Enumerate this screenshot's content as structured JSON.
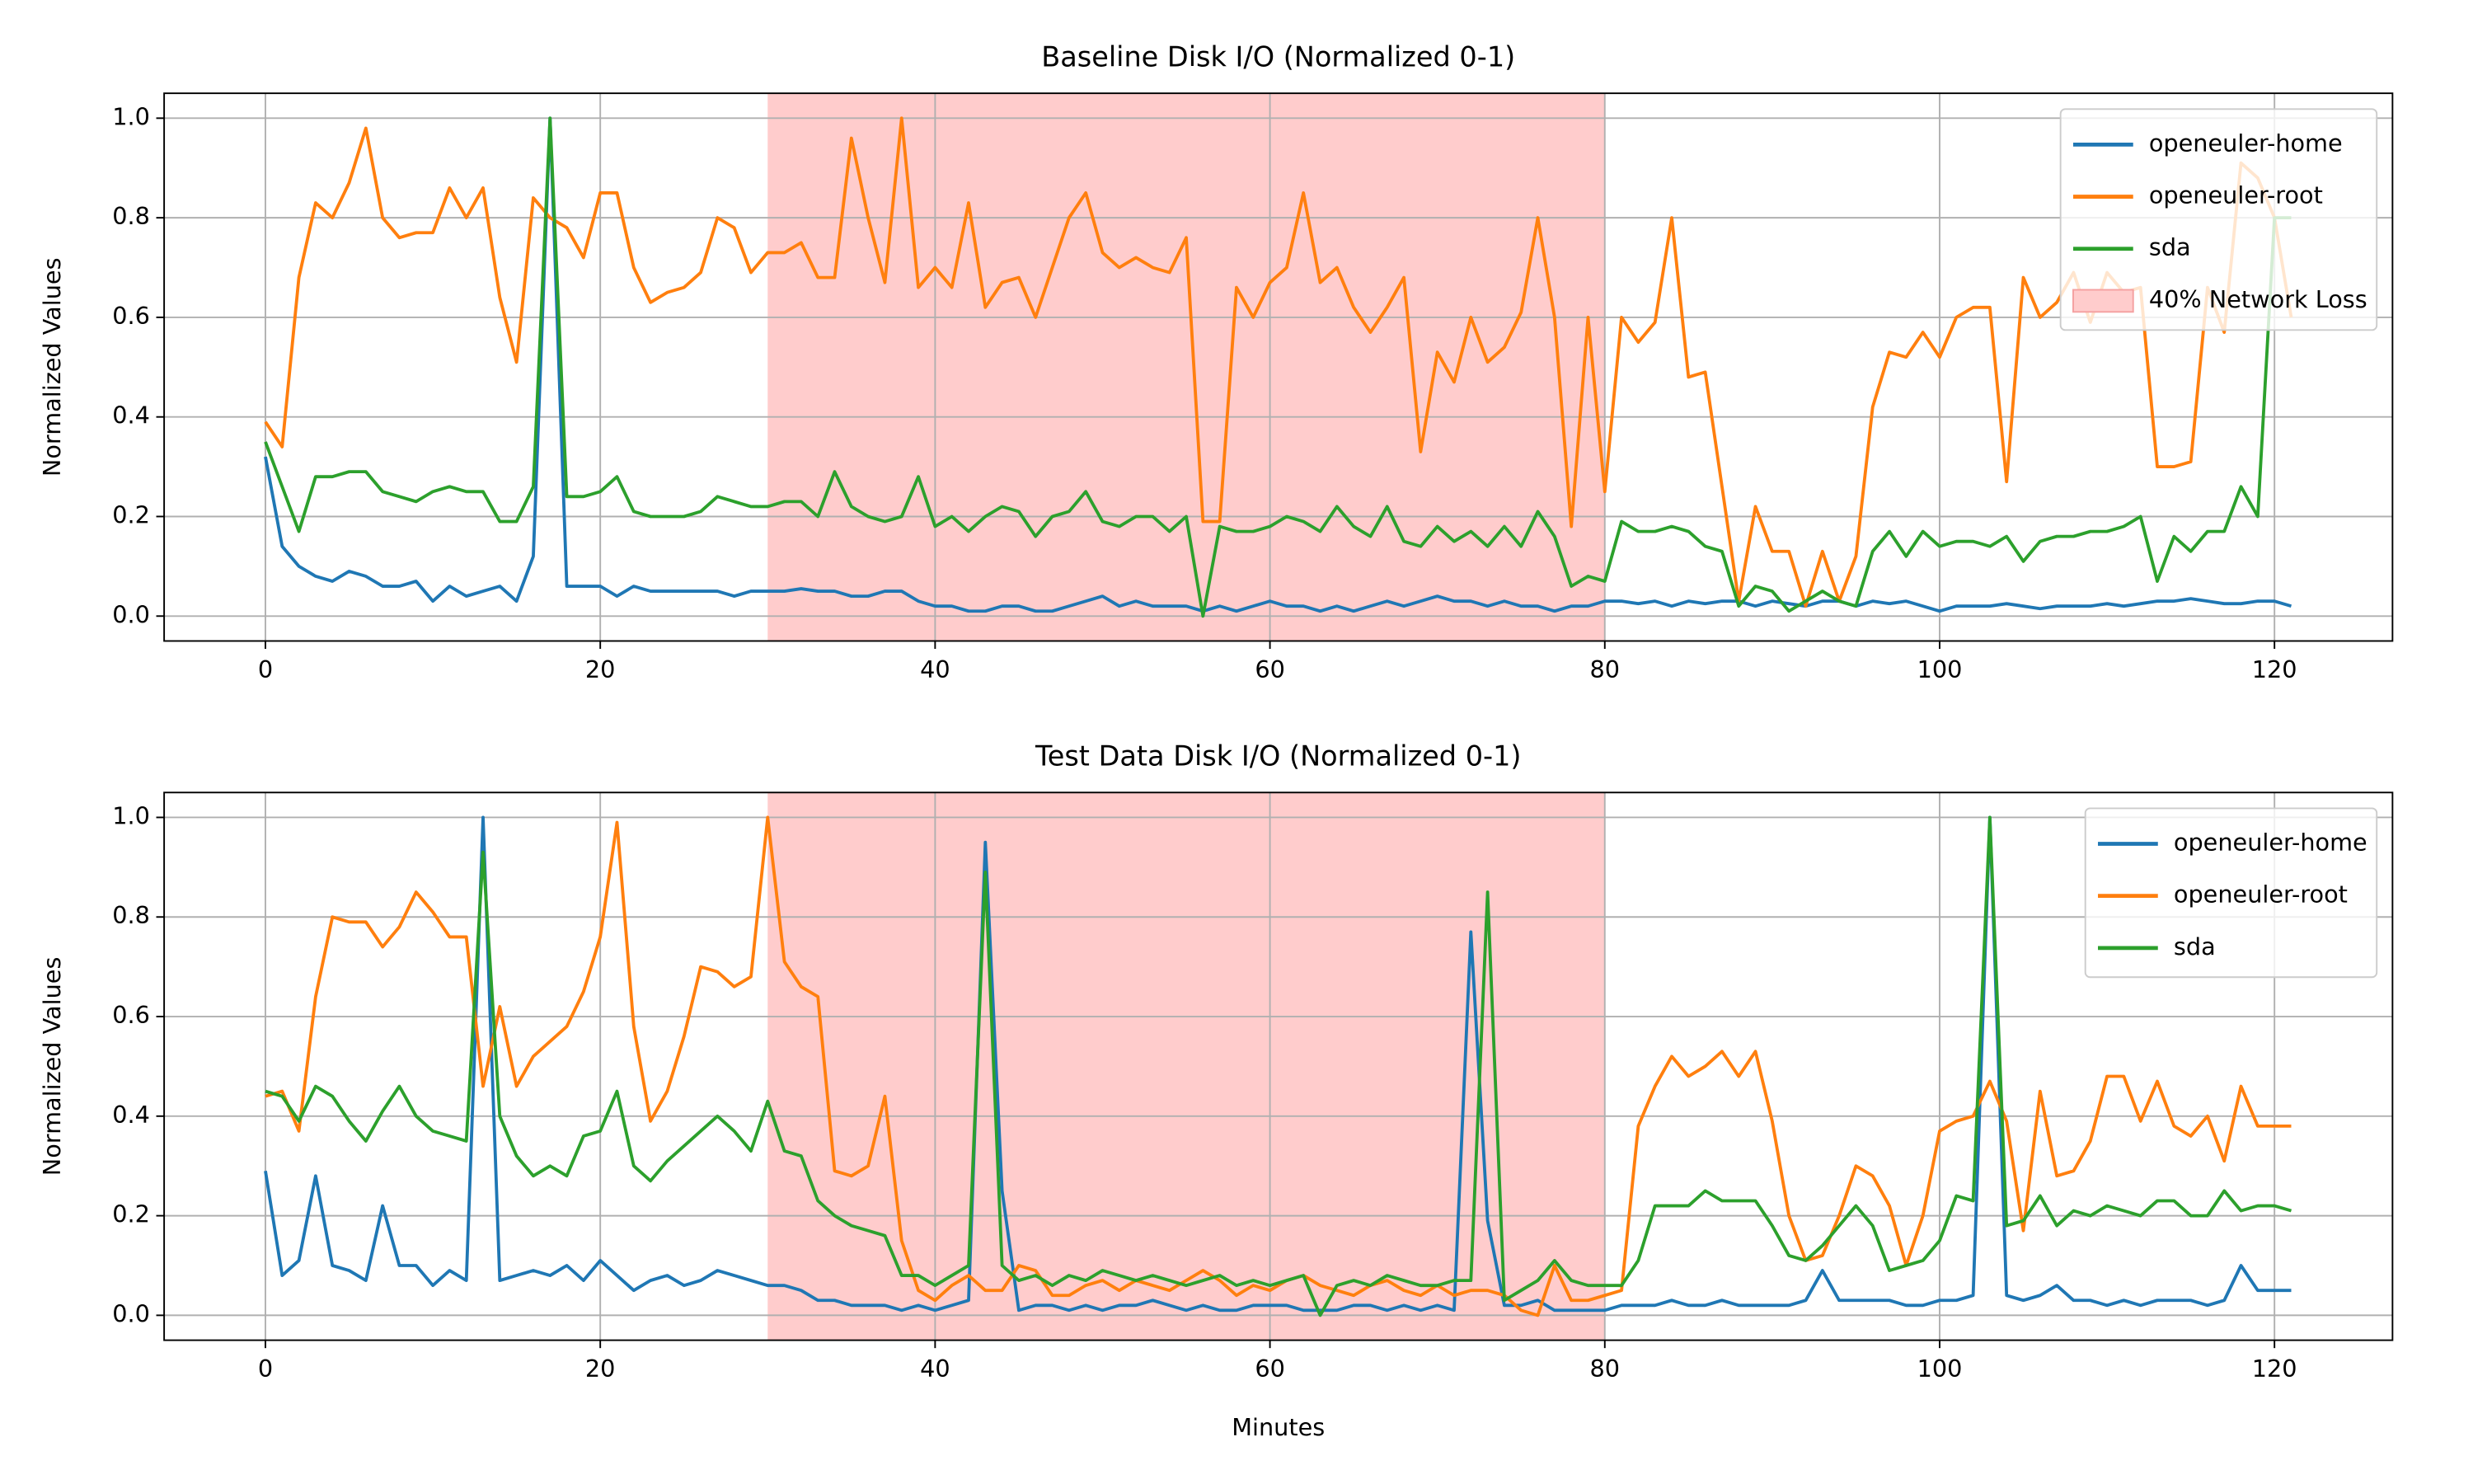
{
  "chart_data": [
    {
      "type": "line",
      "title": "Baseline Disk I/O (Normalized 0-1)",
      "ylabel": "Normalized Values",
      "x": [
        0,
        1,
        2,
        3,
        4,
        5,
        6,
        7,
        8,
        9,
        10,
        11,
        12,
        13,
        14,
        15,
        16,
        17,
        18,
        19,
        20,
        21,
        22,
        23,
        24,
        25,
        26,
        27,
        28,
        29,
        30,
        31,
        32,
        33,
        34,
        35,
        36,
        37,
        38,
        39,
        40,
        41,
        42,
        43,
        44,
        45,
        46,
        47,
        48,
        49,
        50,
        51,
        52,
        53,
        54,
        55,
        56,
        57,
        58,
        59,
        60,
        61,
        62,
        63,
        64,
        65,
        66,
        67,
        68,
        69,
        70,
        71,
        72,
        73,
        74,
        75,
        76,
        77,
        78,
        79,
        80,
        81,
        82,
        83,
        84,
        85,
        86,
        87,
        88,
        89,
        90,
        91,
        92,
        93,
        94,
        95,
        96,
        97,
        98,
        99,
        100,
        101,
        102,
        103,
        104,
        105,
        106,
        107,
        108,
        109,
        110,
        111,
        112,
        113,
        114,
        115,
        116,
        117,
        118,
        119,
        120,
        121
      ],
      "series": [
        {
          "name": "openeuler-home",
          "color": "#1f77b4",
          "values": [
            0.32,
            0.14,
            0.1,
            0.08,
            0.07,
            0.09,
            0.08,
            0.06,
            0.06,
            0.07,
            0.03,
            0.06,
            0.04,
            0.05,
            0.06,
            0.03,
            0.12,
            1.0,
            0.06,
            0.06,
            0.06,
            0.04,
            0.06,
            0.05,
            0.05,
            0.05,
            0.05,
            0.05,
            0.04,
            0.05,
            0.05,
            0.05,
            0.055,
            0.05,
            0.05,
            0.04,
            0.04,
            0.05,
            0.05,
            0.03,
            0.02,
            0.02,
            0.01,
            0.01,
            0.02,
            0.02,
            0.01,
            0.01,
            0.02,
            0.03,
            0.04,
            0.02,
            0.03,
            0.02,
            0.02,
            0.02,
            0.01,
            0.02,
            0.01,
            0.02,
            0.03,
            0.02,
            0.02,
            0.01,
            0.02,
            0.01,
            0.02,
            0.03,
            0.02,
            0.03,
            0.04,
            0.03,
            0.03,
            0.02,
            0.03,
            0.02,
            0.02,
            0.01,
            0.02,
            0.02,
            0.03,
            0.03,
            0.025,
            0.03,
            0.02,
            0.03,
            0.025,
            0.03,
            0.03,
            0.02,
            0.03,
            0.025,
            0.02,
            0.03,
            0.03,
            0.02,
            0.03,
            0.025,
            0.03,
            0.02,
            0.01,
            0.02,
            0.02,
            0.02,
            0.025,
            0.02,
            0.015,
            0.02,
            0.02,
            0.02,
            0.025,
            0.02,
            0.025,
            0.03,
            0.03,
            0.035,
            0.03,
            0.025,
            0.025,
            0.03,
            0.03,
            0.02
          ]
        },
        {
          "name": "openeuler-root",
          "color": "#ff7f0e",
          "values": [
            0.39,
            0.34,
            0.68,
            0.83,
            0.8,
            0.87,
            0.98,
            0.8,
            0.76,
            0.77,
            0.77,
            0.86,
            0.8,
            0.86,
            0.64,
            0.51,
            0.84,
            0.8,
            0.78,
            0.72,
            0.85,
            0.85,
            0.7,
            0.63,
            0.65,
            0.66,
            0.69,
            0.8,
            0.78,
            0.69,
            0.73,
            0.73,
            0.75,
            0.68,
            0.68,
            0.96,
            0.8,
            0.67,
            1.0,
            0.66,
            0.7,
            0.66,
            0.83,
            0.62,
            0.67,
            0.68,
            0.6,
            0.7,
            0.8,
            0.85,
            0.73,
            0.7,
            0.72,
            0.7,
            0.69,
            0.76,
            0.19,
            0.19,
            0.66,
            0.6,
            0.67,
            0.7,
            0.85,
            0.67,
            0.7,
            0.62,
            0.57,
            0.62,
            0.68,
            0.33,
            0.53,
            0.47,
            0.6,
            0.51,
            0.54,
            0.61,
            0.8,
            0.6,
            0.18,
            0.6,
            0.25,
            0.6,
            0.55,
            0.59,
            0.8,
            0.48,
            0.49,
            0.26,
            0.03,
            0.22,
            0.13,
            0.13,
            0.02,
            0.13,
            0.03,
            0.12,
            0.42,
            0.53,
            0.52,
            0.57,
            0.52,
            0.6,
            0.62,
            0.62,
            0.27,
            0.68,
            0.6,
            0.63,
            0.69,
            0.59,
            0.69,
            0.65,
            0.66,
            0.3,
            0.3,
            0.31,
            0.66,
            0.57,
            0.91,
            0.88,
            0.8,
            0.6
          ]
        },
        {
          "name": "sda",
          "color": "#2ca02c",
          "values": [
            0.35,
            0.26,
            0.17,
            0.28,
            0.28,
            0.29,
            0.29,
            0.25,
            0.24,
            0.23,
            0.25,
            0.26,
            0.25,
            0.25,
            0.19,
            0.19,
            0.26,
            1.0,
            0.24,
            0.24,
            0.25,
            0.28,
            0.21,
            0.2,
            0.2,
            0.2,
            0.21,
            0.24,
            0.23,
            0.22,
            0.22,
            0.23,
            0.23,
            0.2,
            0.29,
            0.22,
            0.2,
            0.19,
            0.2,
            0.28,
            0.18,
            0.2,
            0.17,
            0.2,
            0.22,
            0.21,
            0.16,
            0.2,
            0.21,
            0.25,
            0.19,
            0.18,
            0.2,
            0.2,
            0.17,
            0.2,
            0.0,
            0.18,
            0.17,
            0.17,
            0.18,
            0.2,
            0.19,
            0.17,
            0.22,
            0.18,
            0.16,
            0.22,
            0.15,
            0.14,
            0.18,
            0.15,
            0.17,
            0.14,
            0.18,
            0.14,
            0.21,
            0.16,
            0.06,
            0.08,
            0.07,
            0.19,
            0.17,
            0.17,
            0.18,
            0.17,
            0.14,
            0.13,
            0.02,
            0.06,
            0.05,
            0.01,
            0.03,
            0.05,
            0.03,
            0.02,
            0.13,
            0.17,
            0.12,
            0.17,
            0.14,
            0.15,
            0.15,
            0.14,
            0.16,
            0.11,
            0.15,
            0.16,
            0.16,
            0.17,
            0.17,
            0.18,
            0.2,
            0.07,
            0.16,
            0.13,
            0.17,
            0.17,
            0.26,
            0.2,
            0.8,
            0.8
          ]
        }
      ],
      "shade": {
        "x": [
          30,
          80
        ],
        "color": "#ffcccc",
        "label": "40% Network Loss"
      },
      "xlim": [
        -6.05,
        127.05
      ],
      "xticks": [
        0,
        20,
        40,
        60,
        80,
        100,
        120
      ],
      "ylim": [
        -0.05,
        1.05
      ],
      "yticks": [
        {
          "value": 0,
          "label": "0.0"
        },
        0.2,
        0.4,
        0.6,
        0.8,
        {
          "value": 1,
          "label": "1.0"
        }
      ],
      "grid": true,
      "legend": "upper right"
    },
    {
      "type": "line",
      "title": "Test Data Disk I/O (Normalized 0-1)",
      "ylabel": "Normalized Values",
      "xlabel": "Minutes",
      "x": [
        0,
        1,
        2,
        3,
        4,
        5,
        6,
        7,
        8,
        9,
        10,
        11,
        12,
        13,
        14,
        15,
        16,
        17,
        18,
        19,
        20,
        21,
        22,
        23,
        24,
        25,
        26,
        27,
        28,
        29,
        30,
        31,
        32,
        33,
        34,
        35,
        36,
        37,
        38,
        39,
        40,
        41,
        42,
        43,
        44,
        45,
        46,
        47,
        48,
        49,
        50,
        51,
        52,
        53,
        54,
        55,
        56,
        57,
        58,
        59,
        60,
        61,
        62,
        63,
        64,
        65,
        66,
        67,
        68,
        69,
        70,
        71,
        72,
        73,
        74,
        75,
        76,
        77,
        78,
        79,
        80,
        81,
        82,
        83,
        84,
        85,
        86,
        87,
        88,
        89,
        90,
        91,
        92,
        93,
        94,
        95,
        96,
        97,
        98,
        99,
        100,
        101,
        102,
        103,
        104,
        105,
        106,
        107,
        108,
        109,
        110,
        111,
        112,
        113,
        114,
        115,
        116,
        117,
        118,
        119,
        120,
        121
      ],
      "series": [
        {
          "name": "openeuler-home",
          "color": "#1f77b4",
          "values": [
            0.29,
            0.08,
            0.11,
            0.28,
            0.1,
            0.09,
            0.07,
            0.22,
            0.1,
            0.1,
            0.06,
            0.09,
            0.07,
            1.0,
            0.07,
            0.08,
            0.09,
            0.08,
            0.1,
            0.07,
            0.11,
            0.08,
            0.05,
            0.07,
            0.08,
            0.06,
            0.07,
            0.09,
            0.08,
            0.07,
            0.06,
            0.06,
            0.05,
            0.03,
            0.03,
            0.02,
            0.02,
            0.02,
            0.01,
            0.02,
            0.01,
            0.02,
            0.03,
            0.95,
            0.25,
            0.01,
            0.02,
            0.02,
            0.01,
            0.02,
            0.01,
            0.02,
            0.02,
            0.03,
            0.02,
            0.01,
            0.02,
            0.01,
            0.01,
            0.02,
            0.02,
            0.02,
            0.01,
            0.01,
            0.01,
            0.02,
            0.02,
            0.01,
            0.02,
            0.01,
            0.02,
            0.01,
            0.77,
            0.19,
            0.02,
            0.02,
            0.03,
            0.01,
            0.01,
            0.01,
            0.01,
            0.02,
            0.02,
            0.02,
            0.03,
            0.02,
            0.02,
            0.03,
            0.02,
            0.02,
            0.02,
            0.02,
            0.03,
            0.09,
            0.03,
            0.03,
            0.03,
            0.03,
            0.02,
            0.02,
            0.03,
            0.03,
            0.04,
            1.0,
            0.04,
            0.03,
            0.04,
            0.06,
            0.03,
            0.03,
            0.02,
            0.03,
            0.02,
            0.03,
            0.03,
            0.03,
            0.02,
            0.03,
            0.1,
            0.05,
            0.05,
            0.05
          ]
        },
        {
          "name": "openeuler-root",
          "color": "#ff7f0e",
          "values": [
            0.44,
            0.45,
            0.37,
            0.64,
            0.8,
            0.79,
            0.79,
            0.74,
            0.78,
            0.85,
            0.81,
            0.76,
            0.76,
            0.46,
            0.62,
            0.46,
            0.52,
            0.55,
            0.58,
            0.65,
            0.76,
            0.99,
            0.58,
            0.39,
            0.45,
            0.56,
            0.7,
            0.69,
            0.66,
            0.68,
            1.0,
            0.71,
            0.66,
            0.64,
            0.29,
            0.28,
            0.3,
            0.44,
            0.15,
            0.05,
            0.03,
            0.06,
            0.08,
            0.05,
            0.05,
            0.1,
            0.09,
            0.04,
            0.04,
            0.06,
            0.07,
            0.05,
            0.07,
            0.06,
            0.05,
            0.07,
            0.09,
            0.07,
            0.04,
            0.06,
            0.05,
            0.07,
            0.08,
            0.06,
            0.05,
            0.04,
            0.06,
            0.07,
            0.05,
            0.04,
            0.06,
            0.04,
            0.05,
            0.05,
            0.04,
            0.01,
            0.0,
            0.1,
            0.03,
            0.03,
            0.04,
            0.05,
            0.38,
            0.46,
            0.52,
            0.48,
            0.5,
            0.53,
            0.48,
            0.53,
            0.39,
            0.2,
            0.11,
            0.12,
            0.2,
            0.3,
            0.28,
            0.22,
            0.1,
            0.2,
            0.37,
            0.39,
            0.4,
            0.47,
            0.39,
            0.17,
            0.45,
            0.28,
            0.29,
            0.35,
            0.48,
            0.48,
            0.39,
            0.47,
            0.38,
            0.36,
            0.4,
            0.31,
            0.46,
            0.38,
            0.38,
            0.38
          ]
        },
        {
          "name": "sda",
          "color": "#2ca02c",
          "values": [
            0.45,
            0.44,
            0.39,
            0.46,
            0.44,
            0.39,
            0.35,
            0.41,
            0.46,
            0.4,
            0.37,
            0.36,
            0.35,
            0.93,
            0.4,
            0.32,
            0.28,
            0.3,
            0.28,
            0.36,
            0.37,
            0.45,
            0.3,
            0.27,
            0.31,
            0.34,
            0.37,
            0.4,
            0.37,
            0.33,
            0.43,
            0.33,
            0.32,
            0.23,
            0.2,
            0.18,
            0.17,
            0.16,
            0.08,
            0.08,
            0.06,
            0.08,
            0.1,
            0.89,
            0.1,
            0.07,
            0.08,
            0.06,
            0.08,
            0.07,
            0.09,
            0.08,
            0.07,
            0.08,
            0.07,
            0.06,
            0.07,
            0.08,
            0.06,
            0.07,
            0.06,
            0.07,
            0.08,
            0.0,
            0.06,
            0.07,
            0.06,
            0.08,
            0.07,
            0.06,
            0.06,
            0.07,
            0.07,
            0.85,
            0.03,
            0.05,
            0.07,
            0.11,
            0.07,
            0.06,
            0.06,
            0.06,
            0.11,
            0.22,
            0.22,
            0.22,
            0.25,
            0.23,
            0.23,
            0.23,
            0.18,
            0.12,
            0.11,
            0.14,
            0.18,
            0.22,
            0.18,
            0.09,
            0.1,
            0.11,
            0.15,
            0.24,
            0.23,
            1.0,
            0.18,
            0.19,
            0.24,
            0.18,
            0.21,
            0.2,
            0.22,
            0.21,
            0.2,
            0.23,
            0.23,
            0.2,
            0.2,
            0.25,
            0.21,
            0.22,
            0.22,
            0.21
          ]
        }
      ],
      "shade": {
        "x": [
          30,
          80
        ],
        "color": "#ffcccc"
      },
      "xlim": [
        -6.05,
        127.05
      ],
      "xticks": [
        0,
        20,
        40,
        60,
        80,
        100,
        120
      ],
      "ylim": [
        -0.05,
        1.05
      ],
      "yticks": [
        {
          "value": 0,
          "label": "0.0"
        },
        0.2,
        0.4,
        0.6,
        0.8,
        {
          "value": 1,
          "label": "1.0"
        }
      ],
      "grid": true,
      "legend": "upper right"
    }
  ]
}
